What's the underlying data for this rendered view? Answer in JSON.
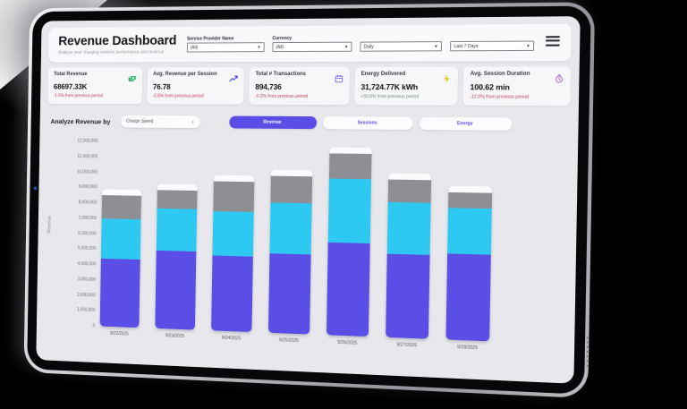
{
  "header": {
    "title": "Revenue Dashboard",
    "subtitle": "Analyze your charging network performance and revenue",
    "filters": [
      {
        "label": "Service Provider Name",
        "value": "(All)"
      },
      {
        "label": "Currency",
        "value": "(All)"
      },
      {
        "label": "",
        "value": "Daily"
      },
      {
        "label": "",
        "value": "Last 7 Days"
      }
    ]
  },
  "kpi": {
    "cards": [
      {
        "title": "Total Revenue",
        "value": "68697.33K",
        "delta": "-1.0% from previous period",
        "delta_color": "#c23b52",
        "icon": "money-icon",
        "icon_color": "#37c177"
      },
      {
        "title": "Avg. Revenue per Session",
        "value": "76.78",
        "delta": "-0.8% from previous period",
        "delta_color": "#c23b52",
        "icon": "trend-up-icon",
        "icon_color": "#4643e3"
      },
      {
        "title": "Total # Transactions",
        "value": "894,736",
        "delta": "-0.2% from previous period",
        "delta_color": "#c23b52",
        "icon": "calendar-icon",
        "icon_color": "#6c5ce7"
      },
      {
        "title": "Energy Delivered",
        "value": "31,724.77K kWh",
        "delta": "+50.8% from previous period",
        "delta_color": "#6f8c74",
        "icon": "bolt-icon",
        "icon_color": "#f2c21d"
      },
      {
        "title": "Avg. Session Duration",
        "value": "100.62 min",
        "delta": "-12.0% from previous period",
        "delta_color": "#c23b52",
        "icon": "clock-icon",
        "icon_color": "#a45fd0"
      }
    ]
  },
  "controls": {
    "analyze_label": "Analyze Revenue by",
    "breakdown": "Charge Speed",
    "breakdown_chevron": "›",
    "tabs": [
      {
        "label": "Revenue",
        "active": true
      },
      {
        "label": "Sessions",
        "active": false
      },
      {
        "label": "Energy",
        "active": false
      }
    ]
  },
  "chart_data": {
    "type": "bar",
    "stacked": true,
    "ylabel": "Revenue",
    "categories": [
      "9/22/2025",
      "9/23/2025",
      "9/24/2025",
      "9/25/2025",
      "9/26/2025",
      "9/27/2025",
      "9/28/2025"
    ],
    "series": [
      {
        "name": "bottom-purple",
        "color": "#5b4ee6",
        "values": [
          4400000,
          5000000,
          4800000,
          5000000,
          5800000,
          5200000,
          5300000
        ]
      },
      {
        "name": "middle-cyan",
        "color": "#2ec9f2",
        "values": [
          2600000,
          2700000,
          2800000,
          3200000,
          4000000,
          3200000,
          2800000
        ]
      },
      {
        "name": "top-gray",
        "color": "#8e8f95",
        "values": [
          1500000,
          1200000,
          1900000,
          1700000,
          1600000,
          1400000,
          1000000
        ]
      }
    ],
    "ylim": [
      0,
      12000000
    ],
    "yticks": [
      "0",
      "1,000,000",
      "2,000,000",
      "3,000,000",
      "4,000,000",
      "5,000,000",
      "6,000,000",
      "7,000,000",
      "8,000,000",
      "9,000,000",
      "10,000,000",
      "11,000,000",
      "12,000,000"
    ],
    "grid": false,
    "legend": "none",
    "bar_cap_color": "#fbfbfd"
  },
  "colors": {
    "accent_purple": "#5b4ee6",
    "screen_bg": "#e8e8ec",
    "card_bg": "#f7f7fa",
    "camera_dot": "#2457c8"
  }
}
